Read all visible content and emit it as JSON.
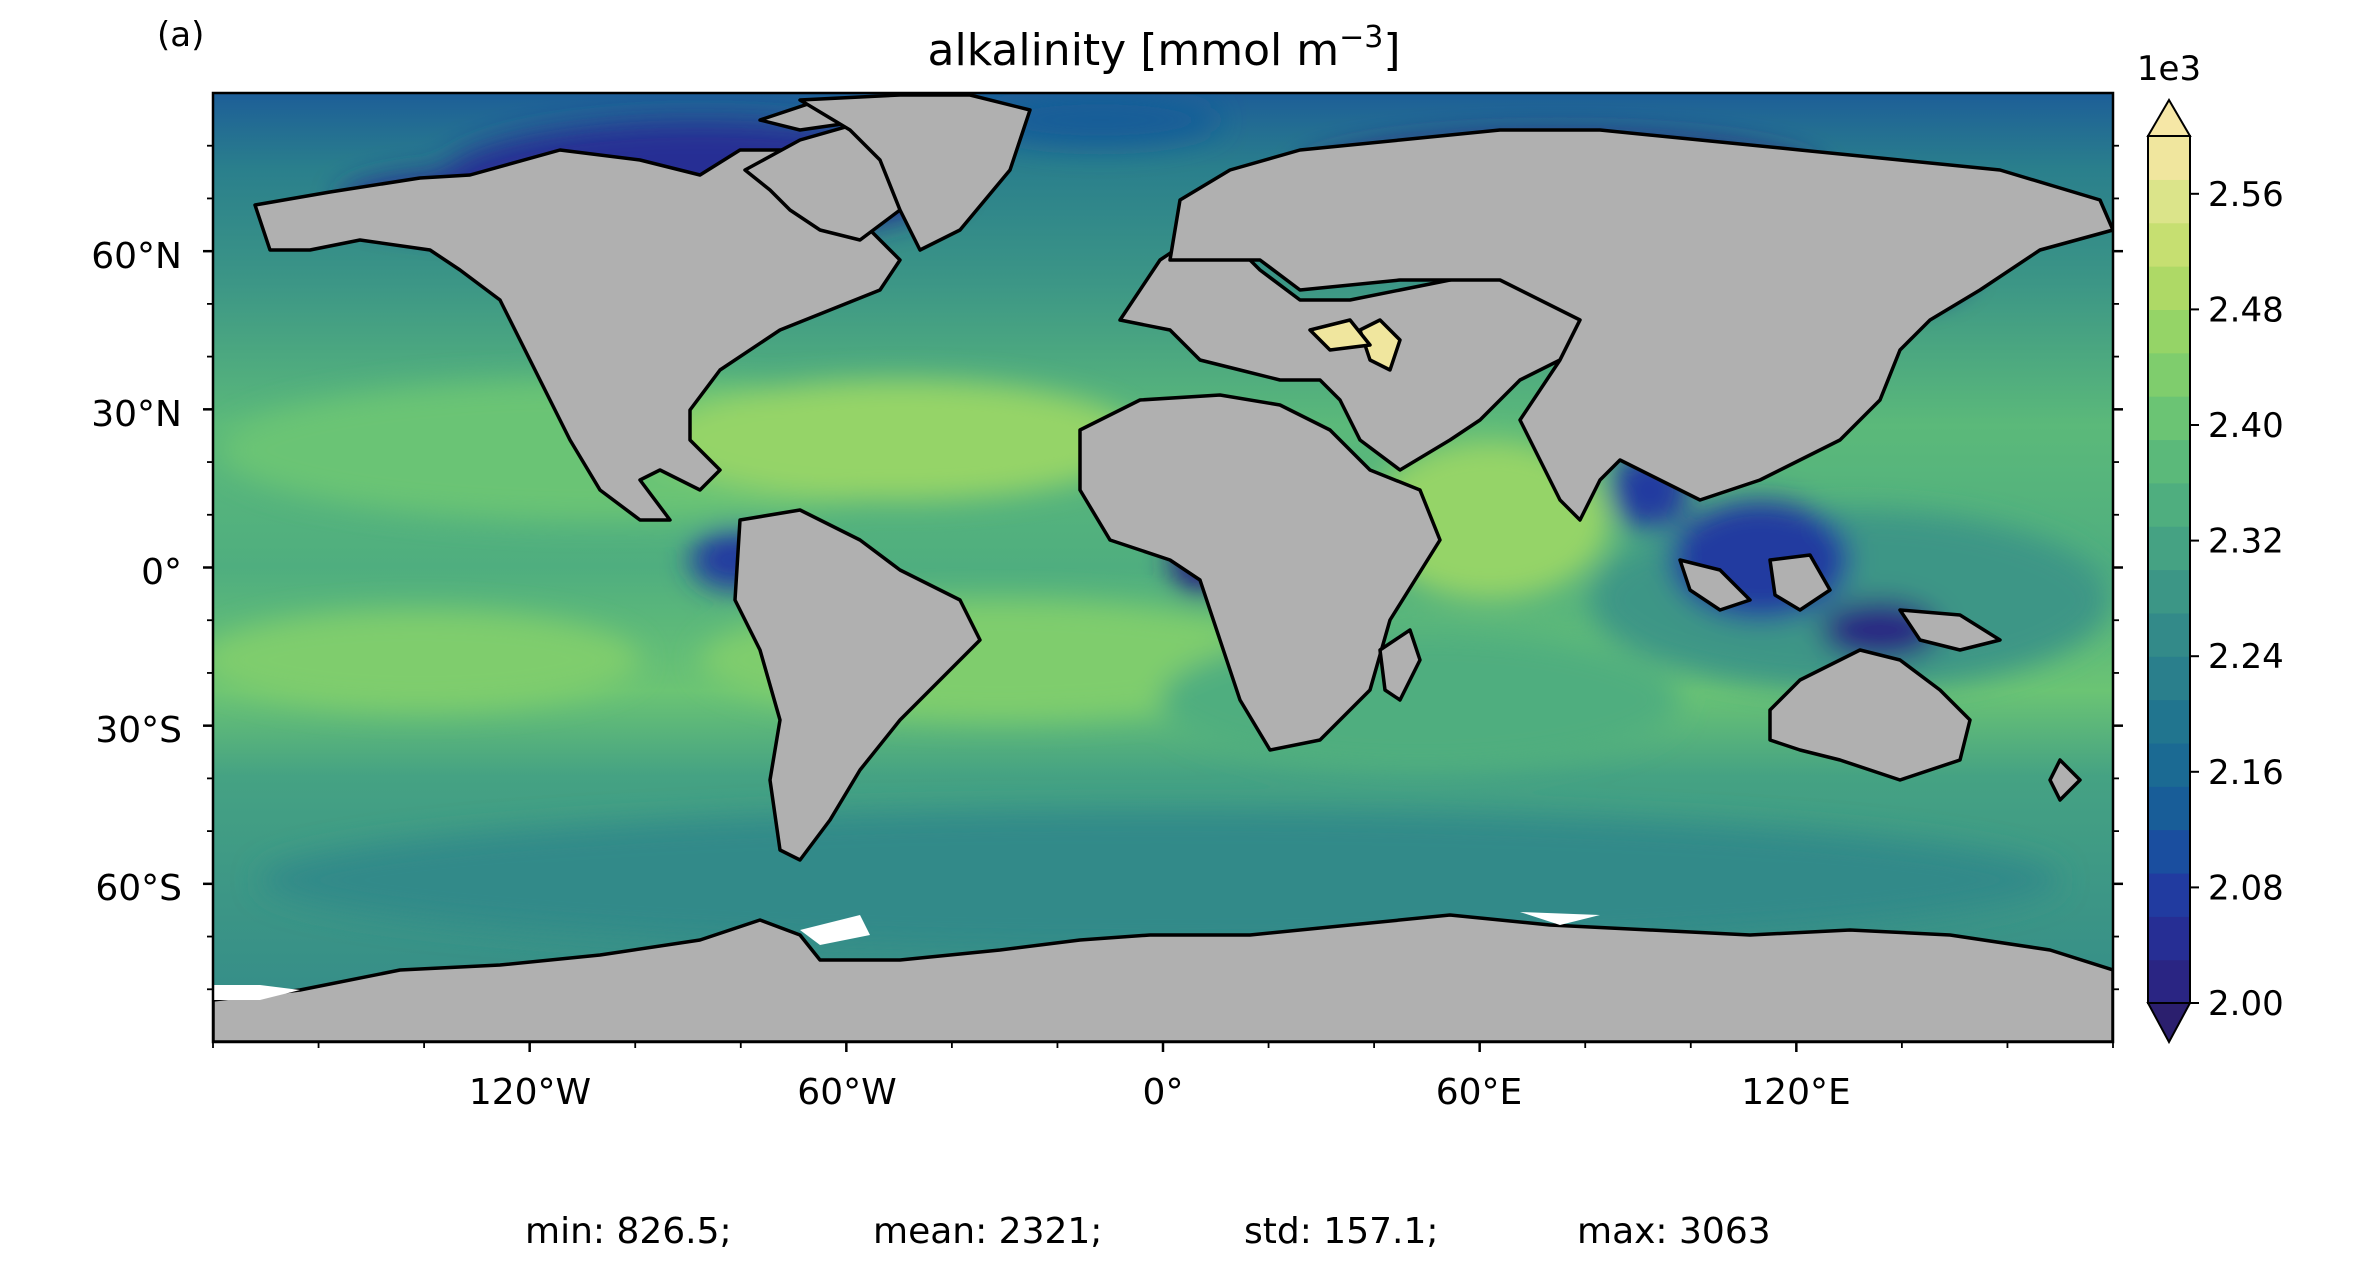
{
  "panel_label": "(a)",
  "title": "alkalinity [mmol m",
  "title_sup": "−3",
  "title_end": "]",
  "colorbar": {
    "multiplier": "1e3",
    "ticks": [
      "2.00",
      "2.08",
      "2.16",
      "2.24",
      "2.32",
      "2.40",
      "2.48",
      "2.56"
    ],
    "tick_values": [
      2.0,
      2.08,
      2.16,
      2.24,
      2.32,
      2.4,
      2.48,
      2.56
    ],
    "range": [
      2.0,
      2.6
    ],
    "extend": "both",
    "colors": [
      "#2b1f6e",
      "#2a2583",
      "#262e94",
      "#213ba0",
      "#1a4e9f",
      "#185d98",
      "#1b6a93",
      "#21758f",
      "#2a7f8c",
      "#338a89",
      "#3c9686",
      "#45a283",
      "#4fae7f",
      "#5bb97a",
      "#6bc474",
      "#7fcd6d",
      "#95d467",
      "#aed966",
      "#c6df71",
      "#dbe48a",
      "#f0e69e",
      "#f6e7a6"
    ]
  },
  "y_axis": {
    "ticks": [
      "60°N",
      "30°N",
      "0°",
      "30°S",
      "60°S"
    ]
  },
  "x_axis": {
    "ticks": [
      "120°W",
      "60°W",
      "0°",
      "60°E",
      "120°E"
    ]
  },
  "stats": {
    "min": "min: 826.5;",
    "mean": "mean: 2321;",
    "std": "std: 157.1;",
    "max": "max: 3063"
  },
  "map_colors": {
    "land": "#b0b0b0",
    "ice": "#ffffff",
    "coast": "#000000"
  }
}
